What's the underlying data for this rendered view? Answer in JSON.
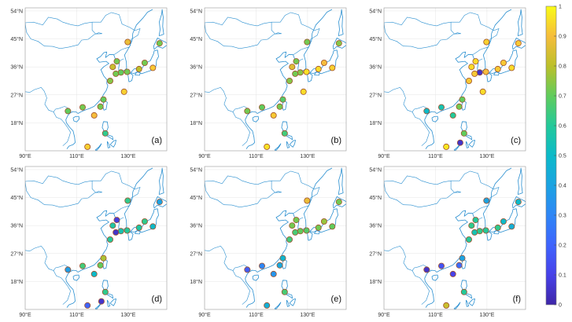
{
  "chart_data": {
    "type": "scatter",
    "colorbar": {
      "min": 0,
      "max": 1,
      "ticks": [
        "0",
        "0.1",
        "0.2",
        "0.3",
        "0.4",
        "0.5",
        "0.6",
        "0.7",
        "0.8",
        "0.9",
        "1"
      ]
    },
    "axes": {
      "lon_ticks": [
        "90°E",
        "110°E",
        "130°E"
      ],
      "lat_ticks": [
        "54°N",
        "45°N",
        "36°N",
        "27°N",
        "18°N"
      ],
      "lon_range": [
        90,
        145
      ],
      "lat_range": [
        9,
        55
      ]
    },
    "stations": [
      {
        "lon": 129.8,
        "lat": 44.0
      },
      {
        "lon": 142.2,
        "lat": 43.6
      },
      {
        "lon": 125.6,
        "lat": 37.8
      },
      {
        "lon": 124.0,
        "lat": 36.0
      },
      {
        "lon": 127.2,
        "lat": 34.2
      },
      {
        "lon": 136.4,
        "lat": 37.3
      },
      {
        "lon": 125.2,
        "lat": 33.8
      },
      {
        "lon": 123.0,
        "lat": 31.5
      },
      {
        "lon": 129.6,
        "lat": 34.4
      },
      {
        "lon": 134.2,
        "lat": 35.3
      },
      {
        "lon": 139.6,
        "lat": 35.7
      },
      {
        "lon": 128.4,
        "lat": 28.0
      },
      {
        "lon": 120.4,
        "lat": 25.5
      },
      {
        "lon": 119.2,
        "lat": 23.2
      },
      {
        "lon": 116.8,
        "lat": 20.4
      },
      {
        "lon": 112.3,
        "lat": 23.0
      },
      {
        "lon": 106.6,
        "lat": 21.8
      },
      {
        "lon": 121.1,
        "lat": 14.6
      },
      {
        "lon": 114.2,
        "lat": 10.3
      },
      {
        "lon": 119.6,
        "lat": 11.6
      }
    ],
    "panels": [
      {
        "label": "(a)",
        "values": [
          0.88,
          0.72,
          0.72,
          0.82,
          0.7,
          0.72,
          0.72,
          0.74,
          0.72,
          0.8,
          0.92,
          0.93,
          0.7,
          0.72,
          0.9,
          0.72,
          0.7,
          0.62,
          0.93,
          null
        ]
      },
      {
        "label": "(b)",
        "values": [
          0.72,
          0.74,
          0.72,
          0.86,
          0.74,
          0.9,
          0.72,
          0.74,
          0.96,
          0.95,
          0.93,
          0.95,
          0.68,
          0.72,
          0.92,
          0.7,
          0.72,
          0.65,
          0.96,
          null
        ]
      },
      {
        "label": "(c)",
        "values": [
          0.93,
          0.92,
          0.95,
          0.95,
          0.05,
          0.92,
          0.92,
          0.92,
          0.9,
          0.92,
          0.95,
          0.95,
          0.7,
          0.72,
          0.6,
          0.55,
          0.5,
          0.7,
          0.97,
          0.05
        ]
      },
      {
        "label": "(d)",
        "values": [
          0.62,
          0.4,
          0.08,
          0.58,
          0.55,
          0.62,
          0.05,
          0.6,
          0.6,
          0.58,
          0.5,
          null,
          0.78,
          0.7,
          0.5,
          0.65,
          0.38,
          0.62,
          0.2,
          0.05
        ]
      },
      {
        "label": "(e)",
        "values": [
          0.88,
          0.72,
          0.72,
          0.72,
          0.7,
          0.76,
          0.66,
          0.65,
          0.68,
          0.72,
          0.7,
          null,
          0.48,
          0.42,
          0.35,
          0.3,
          0.18,
          0.66,
          0.45,
          null
        ]
      },
      {
        "label": "(f)",
        "values": [
          0.4,
          0.5,
          0.6,
          0.62,
          0.62,
          0.5,
          0.55,
          0.6,
          0.6,
          0.62,
          0.45,
          null,
          0.4,
          0.22,
          0.1,
          0.15,
          0.05,
          0.6,
          0.82,
          null
        ]
      }
    ]
  }
}
